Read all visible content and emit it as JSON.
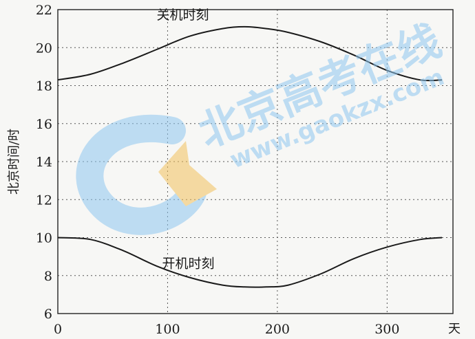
{
  "chart_data": {
    "type": "line",
    "title": "",
    "xlabel": "天",
    "ylabel": "北京时间/时",
    "xlim": [
      0,
      360
    ],
    "ylim": [
      6,
      22
    ],
    "xticks": [
      0,
      100,
      200,
      300
    ],
    "yticks": [
      6,
      8,
      10,
      12,
      14,
      16,
      18,
      20,
      22
    ],
    "grid": true,
    "series": [
      {
        "name": "关机时刻",
        "x": [
          0,
          30,
          60,
          90,
          120,
          150,
          170,
          190,
          210,
          240,
          270,
          300,
          330,
          350
        ],
        "y": [
          18.3,
          18.6,
          19.2,
          19.9,
          20.6,
          21.0,
          21.1,
          21.0,
          20.8,
          20.3,
          19.6,
          18.8,
          18.3,
          18.3
        ]
      },
      {
        "name": "开机时刻",
        "x": [
          0,
          30,
          60,
          90,
          120,
          150,
          170,
          190,
          210,
          240,
          270,
          300,
          330,
          350
        ],
        "y": [
          10.0,
          9.9,
          9.3,
          8.5,
          7.9,
          7.5,
          7.4,
          7.4,
          7.5,
          8.1,
          8.9,
          9.5,
          9.9,
          10.0
        ]
      }
    ],
    "annotations": [
      {
        "text": "关机时刻",
        "x": 90,
        "y": 21.5
      },
      {
        "text": "开机时刻",
        "x": 95,
        "y": 8.4
      }
    ]
  },
  "watermark": {
    "text_cn": "北京高考在线",
    "text_url": "www.gaokzx.com",
    "color": "#8ec7ef"
  }
}
